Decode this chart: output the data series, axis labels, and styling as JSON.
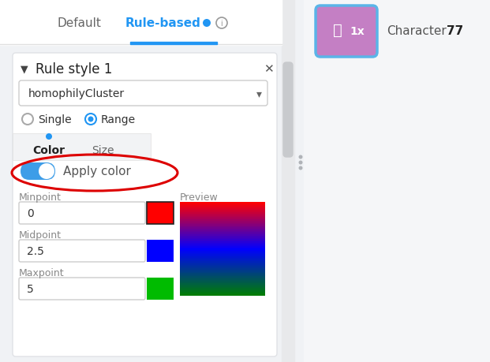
{
  "bg_color": "#f0f2f5",
  "tab_default": "Default",
  "tab_rulebased": "Rule-based",
  "tab_line_color": "#2196f3",
  "rule_title": "Rule style 1",
  "dropdown_label": "homophilyCluster",
  "radio_single": "Single",
  "radio_range": "Range",
  "color_tab": "Color",
  "size_tab": "Size",
  "toggle_label": "Apply color",
  "toggle_on_color": "#3d9de8",
  "toggle_circle_color": "#ffffff",
  "minpoint_label": "Minpoint",
  "minpoint_val": "0",
  "minpoint_color": "#ff0000",
  "midpoint_label": "Midpoint",
  "midpoint_val": "2.5",
  "midpoint_color": "#0000ff",
  "maxpoint_label": "Maxpoint",
  "maxpoint_val": "5",
  "maxpoint_color": "#00bb00",
  "preview_label": "Preview",
  "purple_box_color": "#c47fc4",
  "purple_box_border": "#5ab4e8",
  "char_label": "Character",
  "char_num": "77",
  "info_dot_color": "#2196f3",
  "ellipsis_color": "#b0b3b8",
  "scroll_color": "#c8cacd",
  "white": "#ffffff",
  "panel_border": "#e0e2e6",
  "field_border": "#cccccc",
  "label_color": "#888888",
  "text_color": "#333333",
  "tab_inactive_color": "#777777",
  "blue_dot_color": "#2196f3"
}
